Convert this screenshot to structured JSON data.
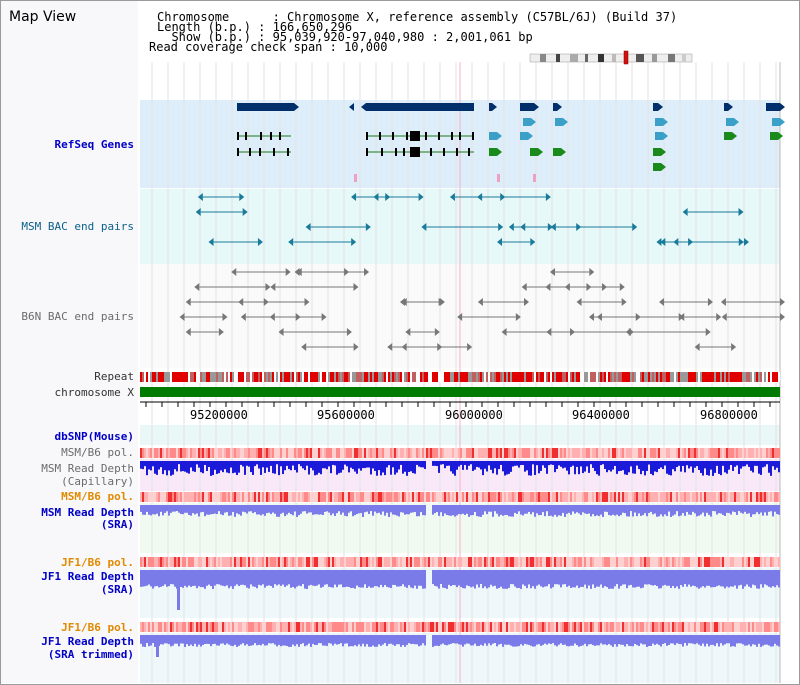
{
  "title": "Map View",
  "info": {
    "chromosome_label": "Chromosome",
    "chromosome_value": "Chromosome X, reference assembly (C57BL/6J) (Build 37)",
    "length_label": "Length (b.p.)",
    "length_value": "166,650,296",
    "show_label": "Show (b.p.)",
    "show_value": "95,039,920-97,040,980 : 2,001,061 bp",
    "span_label": "Read coverage check span",
    "span_value": "10,000"
  },
  "tracks": {
    "refseq": "RefSeq Genes",
    "msm_bac": "MSM BAC end pairs",
    "b6n_bac": "B6N BAC end pairs",
    "repeat": "Repeat",
    "chromosome": "chromosome X",
    "dbsnp": "dbSNP(Mouse)",
    "msm_b6_pol_1": "MSM/B6 pol.",
    "msm_depth_cap_1": "MSM Read Depth",
    "msm_depth_cap_2": "(Capillary)",
    "msm_b6_pol_2": "MSM/B6 pol.",
    "msm_depth_sra_1": "MSM Read Depth",
    "msm_depth_sra_2": "(SRA)",
    "jf1_b6_pol_1": "JF1/B6 pol.",
    "jf1_depth_sra_1": "JF1 Read Depth",
    "jf1_depth_sra_2": "(SRA)",
    "jf1_b6_pol_2": "JF1/B6 pol.",
    "jf1_depth_trim_1": "JF1 Read Depth",
    "jf1_depth_trim_2": "(SRA trimmed)"
  },
  "ruler": {
    "ticks": [
      "95200000",
      "95600000",
      "96000000",
      "96400000",
      "96800000"
    ]
  },
  "colors": {
    "refseq_bg": "#ddeefa",
    "bac_bg": "#e6f8f8",
    "gene_dark": "#002f6c",
    "gene_light": "#3aa0c8",
    "gene_green": "#1a8a1a",
    "repeat_red": "#e00000",
    "chrom_green": "#007a00",
    "msm_blue": "#1a1ad8",
    "sra_blue": "#7a7ae8"
  }
}
